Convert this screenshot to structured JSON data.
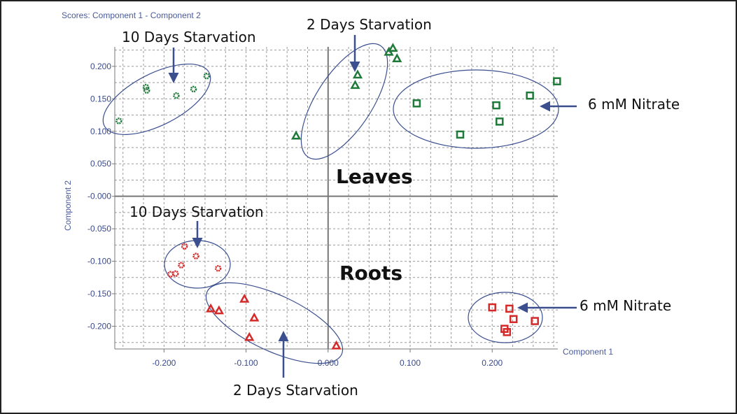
{
  "chart_data": {
    "type": "scatter",
    "title": "Scores: Component 1 - Component 2",
    "xlabel": "Component 1",
    "ylabel": "Component 2",
    "xlim": [
      -0.26,
      0.28
    ],
    "ylim": [
      -0.235,
      0.23
    ],
    "grid": true,
    "x_ticks": [
      -0.2,
      -0.1,
      0.0,
      0.1,
      0.2
    ],
    "x_tick_labels": [
      "-0.200",
      "-0.100",
      "0.000",
      "0.100",
      "0.200"
    ],
    "y_ticks": [
      0.2,
      0.15,
      0.1,
      0.05,
      0.0,
      -0.05,
      -0.1,
      -0.15,
      -0.2
    ],
    "y_tick_labels": [
      "0.200",
      "0.150",
      "0.100",
      "0.050",
      "-0.000",
      "-0.050",
      "-0.100",
      "-0.150",
      "-0.200"
    ],
    "series": [
      {
        "group": "leaves-10-days-starvation",
        "marker": "circle",
        "color": "#1f7a3a",
        "x": [
          -0.255,
          -0.222,
          -0.221,
          -0.185,
          -0.164,
          -0.148
        ],
        "y": [
          0.116,
          0.168,
          0.163,
          0.155,
          0.165,
          0.185
        ]
      },
      {
        "group": "leaves-2-days-starvation",
        "marker": "triangle",
        "color": "#1f7a3a",
        "x": [
          -0.039,
          0.033,
          0.036,
          0.074,
          0.079,
          0.084
        ],
        "y": [
          0.093,
          0.171,
          0.187,
          0.222,
          0.228,
          0.212
        ]
      },
      {
        "group": "leaves-6-mm-nitrate",
        "marker": "square",
        "color": "#1f7a3a",
        "x": [
          0.108,
          0.161,
          0.205,
          0.209,
          0.246,
          0.279
        ],
        "y": [
          0.143,
          0.095,
          0.14,
          0.115,
          0.155,
          0.177
        ]
      },
      {
        "group": "roots-10-days-starvation",
        "marker": "circle",
        "color": "#d42a2a",
        "x": [
          -0.175,
          -0.161,
          -0.179,
          -0.186,
          -0.192,
          -0.134
        ],
        "y": [
          -0.077,
          -0.092,
          -0.106,
          -0.119,
          -0.12,
          -0.111
        ]
      },
      {
        "group": "roots-2-days-starvation",
        "marker": "triangle",
        "color": "#d42a2a",
        "x": [
          -0.143,
          -0.133,
          -0.102,
          -0.09,
          -0.096,
          0.01
        ],
        "y": [
          -0.173,
          -0.176,
          -0.158,
          -0.187,
          -0.217,
          -0.23
        ]
      },
      {
        "group": "roots-6-mm-nitrate",
        "marker": "square",
        "color": "#d42a2a",
        "x": [
          0.2,
          0.221,
          0.226,
          0.215,
          0.218,
          0.252
        ],
        "y": [
          -0.171,
          -0.173,
          -0.189,
          -0.204,
          -0.209,
          -0.192
        ]
      }
    ],
    "annotations": {
      "leaves_10_days": "10 Days Starvation",
      "leaves_2_days": "2 Days Starvation",
      "leaves_nitrate": "6 mM Nitrate",
      "roots_10_days": "10 Days Starvation",
      "roots_2_days": "2 Days Starvation",
      "roots_nitrate": "6 mM Nitrate",
      "leaves_label": "Leaves",
      "roots_label": "Roots"
    },
    "colors": {
      "leaves": "#1f7a3a",
      "roots": "#d42a2a",
      "ellipse": "#3b4f8f",
      "arrow": "#3b4f8f",
      "grid": "#9a9a9a",
      "axis": "#777777"
    }
  }
}
